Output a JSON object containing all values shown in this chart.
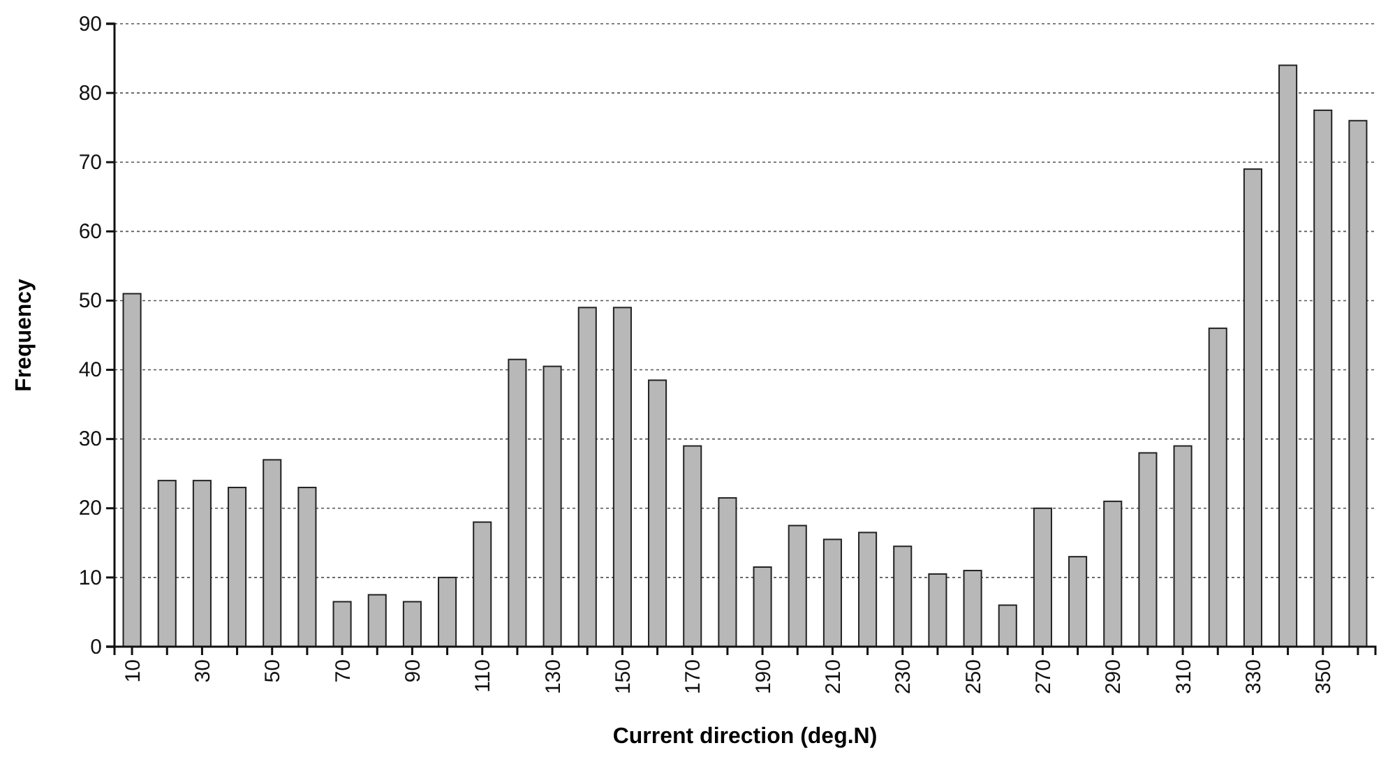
{
  "chart_data": {
    "type": "bar",
    "xlabel": "Current direction (deg.N)",
    "ylabel": "Frequency",
    "categories": [
      "10",
      null,
      "30",
      null,
      "50",
      null,
      "70",
      null,
      "90",
      null,
      "110",
      null,
      "130",
      null,
      "150",
      null,
      "170",
      null,
      "190",
      null,
      "210",
      null,
      "230",
      null,
      "250",
      null,
      "270",
      null,
      "290",
      null,
      "310",
      null,
      "330",
      null,
      "350",
      null
    ],
    "values": [
      51,
      24,
      24,
      23,
      27,
      23,
      6.5,
      7.5,
      6.5,
      10,
      18,
      41.5,
      40.5,
      49,
      49,
      38.5,
      29,
      21.5,
      11.5,
      17.5,
      15.5,
      16.5,
      14.5,
      10.5,
      11,
      6,
      20,
      13,
      21,
      28,
      29,
      46,
      69,
      84,
      77.5,
      76
    ],
    "color": "#b8b8b8",
    "ylim": [
      0,
      90
    ],
    "yticks": [
      0,
      10,
      20,
      30,
      40,
      50,
      60,
      70,
      80,
      90
    ],
    "grid": "y"
  }
}
